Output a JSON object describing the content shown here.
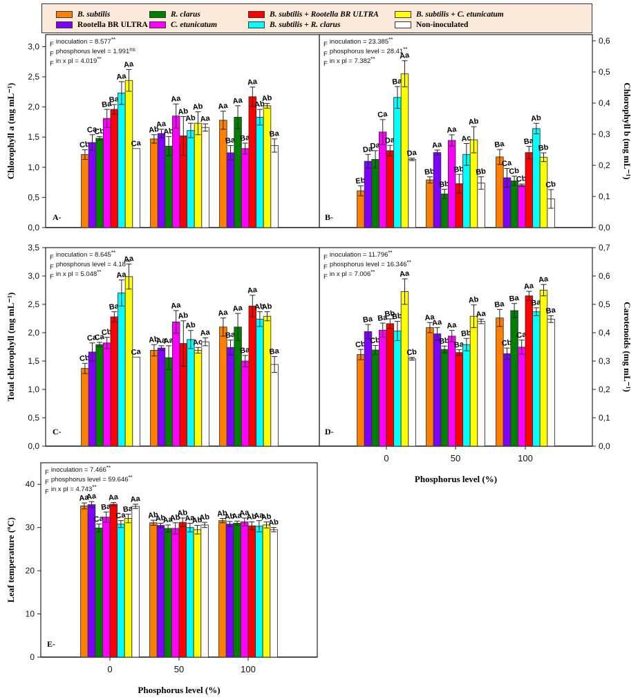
{
  "legend": {
    "items": [
      {
        "label": "B. subtilis",
        "color": "#ff7f00",
        "italic": true
      },
      {
        "label": "Rootella BR ULTRA",
        "color": "#8000ff",
        "italic": false
      },
      {
        "label": "R. clarus",
        "color": "#007f00",
        "italic": true
      },
      {
        "label": "C. etunicatum",
        "color": "#ff00ff",
        "italic": true
      },
      {
        "label": "B. subtilis + Rootella BR ULTRA",
        "color": "#ff0000",
        "italic": true
      },
      {
        "label": "B. subtilis + R. clarus",
        "color": "#00ffff",
        "italic": true
      },
      {
        "label": "B. subtilis + C. etunicatum",
        "color": "#ffff00",
        "italic": true
      },
      {
        "label": "Non-inoculated",
        "color": "#ffffff",
        "italic": false
      }
    ]
  },
  "chart_data": [
    {
      "type": "bar",
      "panel": "A-",
      "ylabel": "Chlorophyll a (mg mL⁻¹)",
      "xlabel": "",
      "axis_side": "left",
      "ylim": [
        0,
        3.2
      ],
      "yticks": [
        "0,0",
        "0,5",
        "1,0",
        "1,5",
        "2,0",
        "2,5",
        "3,0"
      ],
      "ytick_values": [
        0,
        0.5,
        1.0,
        1.5,
        2.0,
        2.5,
        3.0
      ],
      "categories": [
        "0",
        "50",
        "100"
      ],
      "show_xticks": false,
      "stats": [
        {
          "prefix": "F",
          "text": "inoculation = 8.577",
          "sup": "**"
        },
        {
          "prefix": "F",
          "text": "phosphorus level = 1.991",
          "sup": "ns"
        },
        {
          "prefix": "F",
          "text": "in x pl = 4.019",
          "sup": "**"
        }
      ],
      "series": [
        {
          "name": "B. subtilis",
          "values": [
            1.21,
            1.47,
            1.78
          ],
          "errors": [
            0.08,
            0.07,
            0.15
          ],
          "labels": [
            "Cb",
            "Ab",
            "Aa"
          ]
        },
        {
          "name": "Rootella BR ULTRA",
          "values": [
            1.41,
            1.56,
            1.24
          ],
          "errors": [
            0.13,
            0.07,
            0.12
          ],
          "labels": [
            "Ca",
            "Aa",
            "Ba"
          ]
        },
        {
          "name": "R. clarus",
          "values": [
            1.48,
            1.35,
            1.83
          ],
          "errors": [
            0.03,
            0.16,
            0.19
          ],
          "labels": [
            "Cb",
            "Ab",
            "Aa"
          ]
        },
        {
          "name": "C. etunicatum",
          "values": [
            1.81,
            1.85,
            1.31
          ],
          "errors": [
            0.15,
            0.2,
            0.09
          ],
          "labels": [
            "Ba",
            "Aa",
            "Ba"
          ]
        },
        {
          "name": "B. subtilis + Rootella BR ULTRA",
          "values": [
            1.96,
            1.52,
            2.17
          ],
          "errors": [
            0.08,
            0.32,
            0.16
          ],
          "labels": [
            "Ba",
            "Ab",
            "Aa"
          ]
        },
        {
          "name": "B. subtilis + R. clarus",
          "values": [
            2.23,
            1.61,
            1.83
          ],
          "errors": [
            0.19,
            0.12,
            0.13
          ],
          "labels": [
            "Aa",
            "Ab",
            "Ab"
          ]
        },
        {
          "name": "B. subtilis + C. etunicatum",
          "values": [
            2.44,
            1.73,
            2.02
          ],
          "errors": [
            0.18,
            0.19,
            0.04
          ],
          "labels": [
            "Aa",
            "Ab",
            "Ab"
          ]
        },
        {
          "name": "Non-inoculated",
          "values": [
            1.31,
            1.66,
            1.36
          ],
          "errors": [
            0.0,
            0.06,
            0.11
          ],
          "labels": [
            "Ca",
            "Aa",
            "Ba"
          ]
        }
      ]
    },
    {
      "type": "bar",
      "panel": "B-",
      "ylabel": "Chlorophyll b (mg mL⁻¹)",
      "xlabel": "",
      "axis_side": "right",
      "ylim": [
        0,
        0.62
      ],
      "yticks": [
        "0,0",
        "0,1",
        "0,2",
        "0,3",
        "0,4",
        "0,5",
        "0,6"
      ],
      "ytick_values": [
        0,
        0.1,
        0.2,
        0.3,
        0.4,
        0.5,
        0.6
      ],
      "categories": [
        "0",
        "50",
        "100"
      ],
      "show_xticks": false,
      "stats": [
        {
          "prefix": "F",
          "text": "inoculation = 23.385",
          "sup": "**"
        },
        {
          "prefix": "F",
          "text": "phosphorus level = 28.41",
          "sup": "**"
        },
        {
          "prefix": "F",
          "text": "in x pl = 7.382",
          "sup": "**"
        }
      ],
      "series": [
        {
          "name": "B. subtilis",
          "values": [
            0.118,
            0.153,
            0.227
          ],
          "errors": [
            0.016,
            0.01,
            0.024
          ],
          "labels": [
            "Eb",
            "Bb",
            "Ba"
          ]
        },
        {
          "name": "Rootella BR ULTRA",
          "values": [
            0.213,
            0.241,
            0.16
          ],
          "errors": [
            0.022,
            0.008,
            0.03
          ],
          "labels": [
            "Da",
            "Aa",
            "Ca"
          ]
        },
        {
          "name": "R. clarus",
          "values": [
            0.219,
            0.108,
            0.15
          ],
          "errors": [
            0.028,
            0.015,
            0.015
          ],
          "labels": [
            "Da",
            "Bb",
            "Cb"
          ]
        },
        {
          "name": "C. etunicatum",
          "values": [
            0.307,
            0.28,
            0.136
          ],
          "errors": [
            0.04,
            0.018,
            0.004
          ],
          "labels": [
            "Ca",
            "Aa",
            "Cb"
          ]
        },
        {
          "name": "B. subtilis + Rootella BR ULTRA",
          "values": [
            0.247,
            0.141,
            0.241
          ],
          "errors": [
            0.017,
            0.03,
            0.02
          ],
          "labels": [
            "Da",
            "Bb",
            "Ba"
          ]
        },
        {
          "name": "B. subtilis + R. clarus",
          "values": [
            0.418,
            0.235,
            0.318
          ],
          "errors": [
            0.035,
            0.035,
            0.017
          ],
          "labels": [
            "Ba",
            "Ac",
            "Ab"
          ]
        },
        {
          "name": "B. subtilis + C. etunicatum",
          "values": [
            0.494,
            0.282,
            0.226
          ],
          "errors": [
            0.042,
            0.042,
            0.014
          ],
          "labels": [
            "Aa",
            "Ab",
            "Bb"
          ]
        },
        {
          "name": "Non-inoculated",
          "values": [
            0.219,
            0.143,
            0.092
          ],
          "errors": [
            0.004,
            0.02,
            0.03
          ],
          "labels": [
            "Da",
            "Bb",
            "Cb"
          ]
        }
      ]
    },
    {
      "type": "bar",
      "panel": "C-",
      "ylabel": "Total chlorophyll (mg mL⁻¹)",
      "xlabel": "",
      "axis_side": "left",
      "ylim": [
        0,
        3.5
      ],
      "yticks": [
        "0,0",
        "0,5",
        "1,0",
        "1,5",
        "2,0",
        "2,5",
        "3,0",
        "3,5"
      ],
      "ytick_values": [
        0,
        0.5,
        1.0,
        1.5,
        2.0,
        2.5,
        3.0,
        3.5
      ],
      "categories": [
        "0",
        "50",
        "100"
      ],
      "show_xticks": false,
      "stats": [
        {
          "prefix": "F",
          "text": "inoculation = 8.645",
          "sup": "**"
        },
        {
          "prefix": "F",
          "text": "phosphorus level = 4.18",
          "sup": "**"
        },
        {
          "prefix": "F",
          "text": "in x pl = 5.048",
          "sup": "**"
        }
      ],
      "series": [
        {
          "name": "B. subtilis",
          "values": [
            1.37,
            1.69,
            2.1
          ],
          "errors": [
            0.09,
            0.1,
            0.16
          ],
          "labels": [
            "Cb",
            "Ab",
            "Aa"
          ]
        },
        {
          "name": "Rootella BR ULTRA",
          "values": [
            1.66,
            1.73,
            1.74
          ],
          "errors": [
            0.16,
            0.04,
            0.13
          ],
          "labels": [
            "Ca",
            "Aa",
            "Ba"
          ]
        },
        {
          "name": "R. clarus",
          "values": [
            1.79,
            1.56,
            2.1
          ],
          "errors": [
            0.04,
            0.21,
            0.24
          ],
          "labels": [
            "Ca",
            "Aa",
            "Aa"
          ]
        },
        {
          "name": "C. etunicatum",
          "values": [
            1.82,
            2.19,
            1.5
          ],
          "errors": [
            0.1,
            0.2,
            0.1
          ],
          "labels": [
            "Cb",
            "Aa",
            "Ba"
          ]
        },
        {
          "name": "B. subtilis + Rootella BR ULTRA",
          "values": [
            2.28,
            1.81,
            2.47
          ],
          "errors": [
            0.09,
            0.4,
            0.19
          ],
          "labels": [
            "Ba",
            "Ab",
            "Aa"
          ]
        },
        {
          "name": "B. subtilis + R. clarus",
          "values": [
            2.7,
            1.88,
            2.24
          ],
          "errors": [
            0.23,
            0.16,
            0.13
          ],
          "labels": [
            "Aa",
            "Ab",
            "Ab"
          ]
        },
        {
          "name": "B. subtilis + C. etunicatum",
          "values": [
            2.99,
            1.69,
            2.29
          ],
          "errors": [
            0.22,
            0.05,
            0.08
          ],
          "labels": [
            "Aa",
            "Ac",
            "Ab"
          ]
        },
        {
          "name": "Non-inoculated",
          "values": [
            1.57,
            1.84,
            1.44
          ],
          "errors": [
            0.0,
            0.07,
            0.14
          ],
          "labels": [
            "Ca",
            "Aa",
            "Ba"
          ]
        }
      ]
    },
    {
      "type": "bar",
      "panel": "D-",
      "ylabel": "Carotenoids (mg mL⁻¹)",
      "xlabel": "Phosphorus level (%)",
      "axis_side": "right",
      "ylim": [
        0,
        0.7
      ],
      "yticks": [
        "0,0",
        "0,1",
        "0,2",
        "0,3",
        "0,4",
        "0,5",
        "0,6",
        "0,7"
      ],
      "ytick_values": [
        0,
        0.1,
        0.2,
        0.3,
        0.4,
        0.5,
        0.6,
        0.7
      ],
      "categories": [
        "0",
        "50",
        "100"
      ],
      "show_xticks": true,
      "stats": [
        {
          "prefix": "F",
          "text": "inoculation = 11.796",
          "sup": "**"
        },
        {
          "prefix": "F",
          "text": "phosphorus level = 16.346",
          "sup": "**"
        },
        {
          "prefix": "F",
          "text": "in x pl = 7.006",
          "sup": "**"
        }
      ],
      "series": [
        {
          "name": "B. subtilis",
          "values": [
            0.323,
            0.418,
            0.452
          ],
          "errors": [
            0.018,
            0.018,
            0.03
          ],
          "labels": [
            "Cb",
            "Aa",
            "Ba"
          ]
        },
        {
          "name": "Rootella BR ULTRA",
          "values": [
            0.404,
            0.396,
            0.326
          ],
          "errors": [
            0.025,
            0.022,
            0.02
          ],
          "labels": [
            "Ba",
            "Aa",
            "Cb"
          ]
        },
        {
          "name": "R. clarus",
          "values": [
            0.339,
            0.341,
            0.478
          ],
          "errors": [
            0.016,
            0.012,
            0.025
          ],
          "labels": [
            "Cb",
            "Bb",
            "Ba"
          ]
        },
        {
          "name": "C. etunicatum",
          "values": [
            0.409,
            0.388,
            0.349
          ],
          "errors": [
            0.025,
            0.02,
            0.025
          ],
          "labels": [
            "Ba",
            "Aa",
            "Ca"
          ]
        },
        {
          "name": "B. subtilis + Rootella BR ULTRA",
          "values": [
            0.432,
            0.33,
            0.53
          ],
          "errors": [
            0.017,
            0.01,
            0.016
          ],
          "labels": [
            "Bb",
            "Ba",
            "Aa"
          ]
        },
        {
          "name": "B. subtilis + R. clarus",
          "values": [
            0.406,
            0.358,
            0.474
          ],
          "errors": [
            0.034,
            0.022,
            0.014
          ],
          "labels": [
            "Bb",
            "Bb",
            "Ba"
          ]
        },
        {
          "name": "B. subtilis + C. etunicatum",
          "values": [
            0.545,
            0.458,
            0.55
          ],
          "errors": [
            0.045,
            0.04,
            0.02
          ],
          "labels": [
            "Aa",
            "Ab",
            "Aa"
          ]
        },
        {
          "name": "Non-inoculated",
          "values": [
            0.308,
            0.44,
            0.448
          ],
          "errors": [
            0.005,
            0.008,
            0.012
          ],
          "labels": [
            "Cb",
            "Aa",
            "Ba"
          ]
        }
      ]
    },
    {
      "type": "bar",
      "panel": "E-",
      "ylabel": "Leaf temperature (ºC)",
      "xlabel": "Phosphorus level (%)",
      "axis_side": "left",
      "ylim": [
        0,
        45
      ],
      "yticks": [
        "0",
        "10",
        "20",
        "30",
        "40"
      ],
      "ytick_values": [
        0,
        10,
        20,
        30,
        40
      ],
      "categories": [
        "0",
        "50",
        "100"
      ],
      "show_xticks": true,
      "stats": [
        {
          "prefix": "F",
          "text": "inoculation = 7.466",
          "sup": "**"
        },
        {
          "prefix": "F",
          "text": "phosphorus level = 59.646",
          "sup": "**"
        },
        {
          "prefix": "F",
          "text": "in x pl = 4.743",
          "sup": "**"
        }
      ],
      "series": [
        {
          "name": "B. subtilis",
          "values": [
            35.0,
            31.1,
            31.6
          ],
          "errors": [
            0.7,
            0.6,
            0.5
          ],
          "labels": [
            "Aa",
            "Ab",
            "Ab"
          ]
        },
        {
          "name": "Rootella BR ULTRA",
          "values": [
            35.3,
            30.5,
            30.8
          ],
          "errors": [
            0.7,
            0.5,
            0.6
          ],
          "labels": [
            "Aa",
            "Ab",
            "Ab"
          ]
        },
        {
          "name": "R. clarus",
          "values": [
            29.9,
            29.8,
            31.0
          ],
          "errors": [
            0.9,
            0.8,
            0.5
          ],
          "labels": [
            "Ca",
            "Aa",
            "Aa"
          ]
        },
        {
          "name": "C. etunicatum",
          "values": [
            32.4,
            29.8,
            31.3
          ],
          "errors": [
            1.2,
            1.3,
            0.9
          ],
          "labels": [
            "Ba",
            "Ab",
            "Aa"
          ]
        },
        {
          "name": "B. subtilis + Rootella BR ULTRA",
          "values": [
            35.4,
            31.2,
            30.4
          ],
          "errors": [
            0.4,
            1.0,
            0.9
          ],
          "labels": [
            "Aa",
            "Ab",
            "Ab"
          ]
        },
        {
          "name": "B. subtilis + R. clarus",
          "values": [
            30.8,
            30.0,
            30.3
          ],
          "errors": [
            0.8,
            1.0,
            1.3
          ],
          "labels": [
            "Ca",
            "Aa",
            "Aa"
          ]
        },
        {
          "name": "B. subtilis + C. etunicatum",
          "values": [
            32.1,
            29.5,
            30.6
          ],
          "errors": [
            1.0,
            1.0,
            0.7
          ],
          "labels": [
            "Ba",
            "Ab",
            "Ab"
          ]
        },
        {
          "name": "Non-inoculated",
          "values": [
            34.9,
            30.6,
            29.5
          ],
          "errors": [
            0.5,
            0.6,
            0.5
          ],
          "labels": [
            "Aa",
            "Ab",
            "Ab"
          ]
        }
      ]
    }
  ]
}
